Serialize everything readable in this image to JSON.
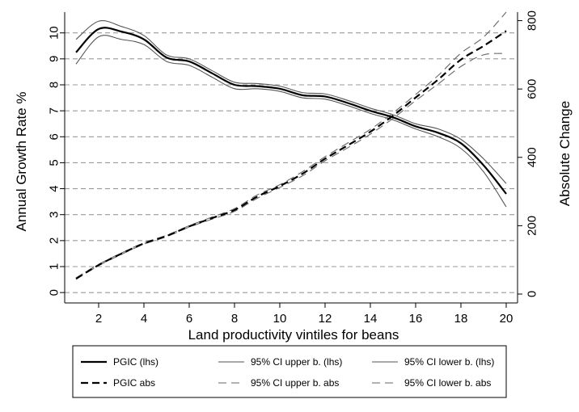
{
  "chart_data": {
    "type": "line",
    "xlabel": "Land productivity vintiles for beans",
    "ylabel_left": "Annual Growth Rate %",
    "ylabel_right": "Absolute Change",
    "x_ticks": [
      2,
      4,
      6,
      8,
      10,
      12,
      14,
      16,
      18,
      20
    ],
    "y_left_ticks": [
      0,
      1,
      2,
      3,
      4,
      5,
      6,
      7,
      8,
      9,
      10
    ],
    "y_right_ticks": [
      0,
      200,
      400,
      600,
      800
    ],
    "xlim": [
      0.5,
      20.5
    ],
    "ylim_left": [
      -0.4,
      10.8
    ],
    "ylim_right": [
      -26,
      825
    ],
    "grid": "horizontal-dashed",
    "legend_position": "bottom",
    "x": [
      1,
      2,
      3,
      4,
      5,
      6,
      7,
      8,
      9,
      10,
      11,
      12,
      13,
      14,
      15,
      16,
      17,
      18,
      19,
      20
    ],
    "series": [
      {
        "name": "PGIC (lhs)",
        "axis": "left",
        "style": "solid",
        "width": 2.2,
        "color": "#000000",
        "values": [
          9.25,
          10.15,
          10.05,
          9.75,
          9.05,
          8.9,
          8.45,
          8.0,
          7.95,
          7.85,
          7.6,
          7.55,
          7.3,
          7.0,
          6.75,
          6.4,
          6.15,
          5.75,
          4.9,
          3.8
        ]
      },
      {
        "name": "95% CI upper b. (lhs)",
        "axis": "left",
        "style": "solid",
        "width": 1.1,
        "color": "#555555",
        "values": [
          9.75,
          10.45,
          10.25,
          9.9,
          9.15,
          9.0,
          8.55,
          8.1,
          8.05,
          7.95,
          7.7,
          7.65,
          7.4,
          7.1,
          6.85,
          6.5,
          6.3,
          5.9,
          5.15,
          4.2
        ]
      },
      {
        "name": "95% CI lower b. (lhs)",
        "axis": "left",
        "style": "solid",
        "width": 1.1,
        "color": "#555555",
        "values": [
          8.8,
          9.85,
          9.75,
          9.55,
          8.9,
          8.75,
          8.3,
          7.85,
          7.85,
          7.75,
          7.5,
          7.45,
          7.2,
          6.9,
          6.65,
          6.3,
          6.0,
          5.55,
          4.65,
          3.3
        ]
      },
      {
        "name": "PGIC abs",
        "axis": "right",
        "style": "dashed",
        "width": 2.2,
        "color": "#000000",
        "values": [
          45,
          85,
          118,
          148,
          170,
          198,
          222,
          246,
          285,
          316,
          352,
          396,
          435,
          475,
          522,
          575,
          628,
          686,
          726,
          770
        ]
      },
      {
        "name": "95% CI upper b. abs",
        "axis": "right",
        "style": "dashed",
        "width": 1.1,
        "color": "#666666",
        "values": [
          47,
          87,
          120,
          150,
          172,
          200,
          225,
          250,
          290,
          320,
          358,
          402,
          442,
          482,
          530,
          584,
          640,
          705,
          752,
          825
        ]
      },
      {
        "name": "95% CI lower b. abs",
        "axis": "right",
        "style": "dashed",
        "width": 1.1,
        "color": "#666666",
        "values": [
          43,
          83,
          116,
          146,
          168,
          196,
          219,
          242,
          280,
          312,
          346,
          390,
          428,
          468,
          514,
          566,
          615,
          666,
          700,
          704
        ]
      }
    ]
  }
}
